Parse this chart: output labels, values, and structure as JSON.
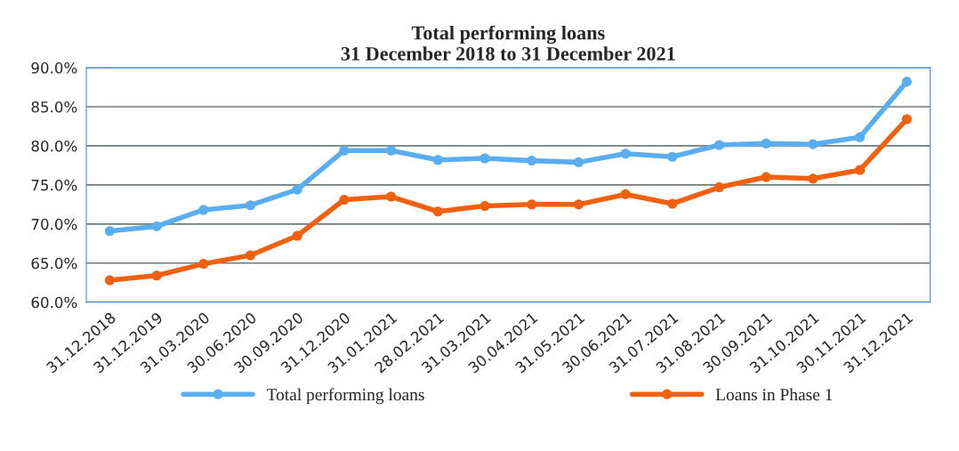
{
  "chart_data": {
    "type": "line",
    "title": "Total performing loans\n31 December 2018 to 31 December 2021",
    "categories": [
      "31.12.2018",
      "31.12.2019",
      "31.03.2020",
      "30.06.2020",
      "30.09.2020",
      "31.12.2020",
      "31.01.2021",
      "28.02.2021",
      "31.03.2021",
      "30.04.2021",
      "31.05.2021",
      "30.06.2021",
      "31.07.2021",
      "31.08.2021",
      "30.09.2021",
      "31.10.2021",
      "30.11.2021",
      "31.12.2021"
    ],
    "series": [
      {
        "name": "Total performing loans",
        "color": "#5aaef0",
        "values": [
          69.1,
          69.7,
          71.8,
          72.4,
          74.4,
          79.4,
          79.4,
          78.2,
          78.4,
          78.1,
          77.9,
          79.0,
          78.6,
          80.1,
          80.3,
          80.2,
          81.1,
          88.2
        ]
      },
      {
        "name": "Loans in Phase 1",
        "color": "#f0600f",
        "values": [
          62.8,
          63.4,
          64.9,
          66.0,
          68.5,
          73.1,
          73.5,
          71.6,
          72.3,
          72.5,
          72.5,
          73.8,
          72.6,
          74.7,
          76.0,
          75.8,
          76.9,
          83.4
        ]
      }
    ],
    "ylim": [
      60,
      90
    ],
    "yticks": [
      {
        "value": 60,
        "label": "60.0%"
      },
      {
        "value": 65,
        "label": "65.0%"
      },
      {
        "value": 70,
        "label": "70.0%"
      },
      {
        "value": 75,
        "label": "75.0%"
      },
      {
        "value": 80,
        "label": "80.0%"
      },
      {
        "value": 85,
        "label": "85.0%"
      },
      {
        "value": 90,
        "label": "90.0%"
      }
    ],
    "grid": "y",
    "legend": "bottom",
    "marker": "circle",
    "line_style": "solid"
  }
}
